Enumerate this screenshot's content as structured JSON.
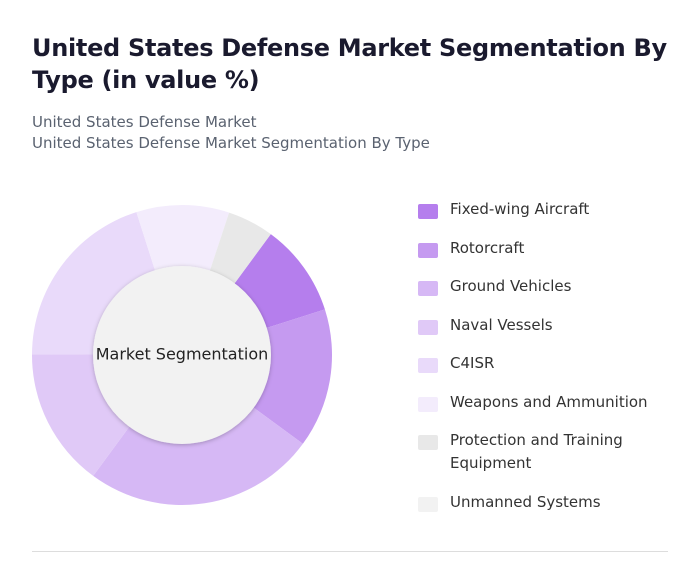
{
  "chart_data": {
    "type": "donut",
    "title": "United States Defense Market Segmentation By Type (in value %)",
    "subtitle": [
      "United States Defense Market",
      "United States Defense Market Segmentation By Type"
    ],
    "center_label": "Market Segmentation",
    "categories": [
      "Fixed-wing Aircraft",
      "Rotorcraft",
      "Ground Vehicles",
      "Naval Vessels",
      "C4ISR",
      "Weapons and Ammunition",
      "Protection and Training Equipment",
      "Unmanned Systems"
    ],
    "values": [
      10,
      15,
      25,
      15,
      20,
      10,
      5,
      0
    ],
    "colors": [
      "#b57eed",
      "#c59af0",
      "#d6b8f5",
      "#e0c9f7",
      "#e9dafa",
      "#f3ecfc",
      "#e8e8e8",
      "#f2f2f2"
    ],
    "legend": "right"
  }
}
